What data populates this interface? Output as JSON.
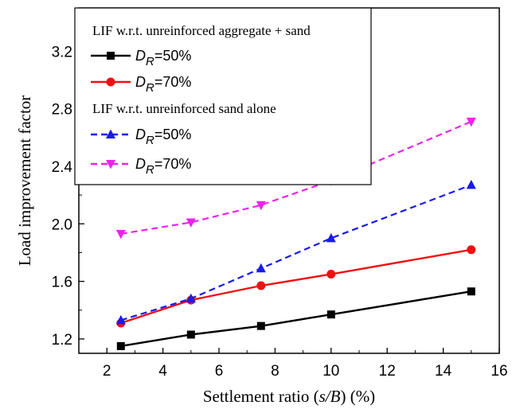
{
  "chart_data": {
    "type": "line",
    "xlabel_pre": "Settlement ratio (",
    "xlabel_italic": "s/B",
    "xlabel_post": ") (%)",
    "ylabel": "Load improvement factor",
    "xlim": [
      1.0,
      16.0
    ],
    "ylim": [
      1.1,
      3.5
    ],
    "x_ticks": [
      2,
      4,
      6,
      8,
      10,
      12,
      14,
      16
    ],
    "y_ticks": [
      1.2,
      1.6,
      2.0,
      2.4,
      2.8,
      3.2
    ],
    "x_tick_labels": [
      "2",
      "4",
      "6",
      "8",
      "10",
      "12",
      "14",
      "16"
    ],
    "y_tick_labels": [
      "1.2",
      "1.6",
      "2.0",
      "2.4",
      "2.8",
      "3.2"
    ],
    "legend_placement": "top-left",
    "grid": false,
    "legend_groups": [
      "LIF w.r.t. unreinforced aggregate + sand",
      "LIF w.r.t. unreinforced sand alone"
    ],
    "series": [
      {
        "name": "DR=50%",
        "label_main": "D",
        "label_sub": "R",
        "label_tail": "=50%",
        "group": 0,
        "color": "#000000",
        "dash": "solid",
        "marker": "square",
        "x": [
          2.5,
          5,
          7.5,
          10,
          15
        ],
        "y": [
          1.15,
          1.23,
          1.29,
          1.37,
          1.53
        ]
      },
      {
        "name": "DR=70%",
        "label_main": "D",
        "label_sub": "R",
        "label_tail": "=70%",
        "group": 0,
        "color": "#ee1111",
        "dash": "solid",
        "marker": "circle",
        "x": [
          2.5,
          5,
          7.5,
          10,
          15
        ],
        "y": [
          1.31,
          1.47,
          1.57,
          1.65,
          1.82
        ]
      },
      {
        "name": "DR=50%",
        "label_main": "D",
        "label_sub": "R",
        "label_tail": "=50%",
        "group": 1,
        "color": "#1a1aee",
        "dash": "dashed",
        "marker": "triangle-up",
        "x": [
          2.5,
          5,
          7.5,
          10,
          15
        ],
        "y": [
          1.33,
          1.48,
          1.69,
          1.9,
          2.27
        ]
      },
      {
        "name": "DR=70%",
        "label_main": "D",
        "label_sub": "R",
        "label_tail": "=70%",
        "group": 1,
        "color": "#ee22ee",
        "dash": "dashed",
        "marker": "triangle-down",
        "x": [
          2.5,
          5,
          7.5,
          10,
          15
        ],
        "y": [
          1.93,
          2.01,
          2.13,
          2.3,
          2.71
        ]
      }
    ]
  }
}
